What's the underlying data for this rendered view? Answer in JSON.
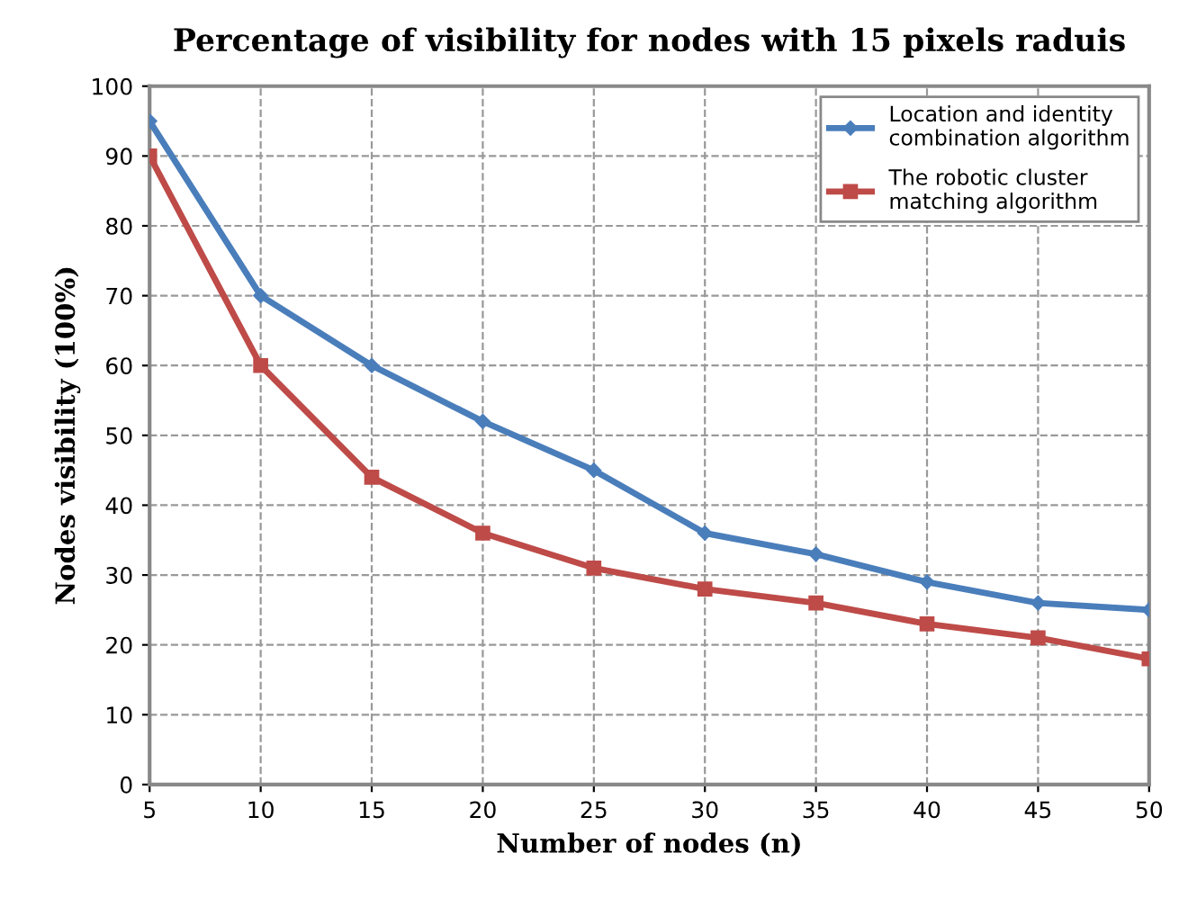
{
  "chart_data": {
    "type": "line",
    "title": "Percentage of visibility for nodes with 15 pixels raduis",
    "xlabel": "Number of nodes (n)",
    "ylabel": "Nodes visibility (100%)",
    "x": [
      5,
      10,
      15,
      20,
      25,
      30,
      35,
      40,
      45,
      50
    ],
    "series": [
      {
        "name": "Location and identity combination algorithm",
        "color": "#4a7ebb",
        "marker": "diamond",
        "values": [
          95,
          70,
          60,
          52,
          45,
          36,
          33,
          29,
          26,
          25
        ]
      },
      {
        "name": "The robotic cluster matching algorithm",
        "color": "#be4b48",
        "marker": "square",
        "values": [
          90,
          60,
          44,
          36,
          31,
          28,
          26,
          23,
          21,
          18
        ]
      }
    ],
    "xlim": [
      5,
      50
    ],
    "xticks": [
      5,
      10,
      15,
      20,
      25,
      30,
      35,
      40,
      45,
      50
    ],
    "ylim": [
      0,
      100
    ],
    "yticks": [
      0,
      10,
      20,
      30,
      40,
      50,
      60,
      70,
      80,
      90,
      100
    ],
    "grid": true,
    "legend": "top right",
    "line_style": "solid"
  }
}
